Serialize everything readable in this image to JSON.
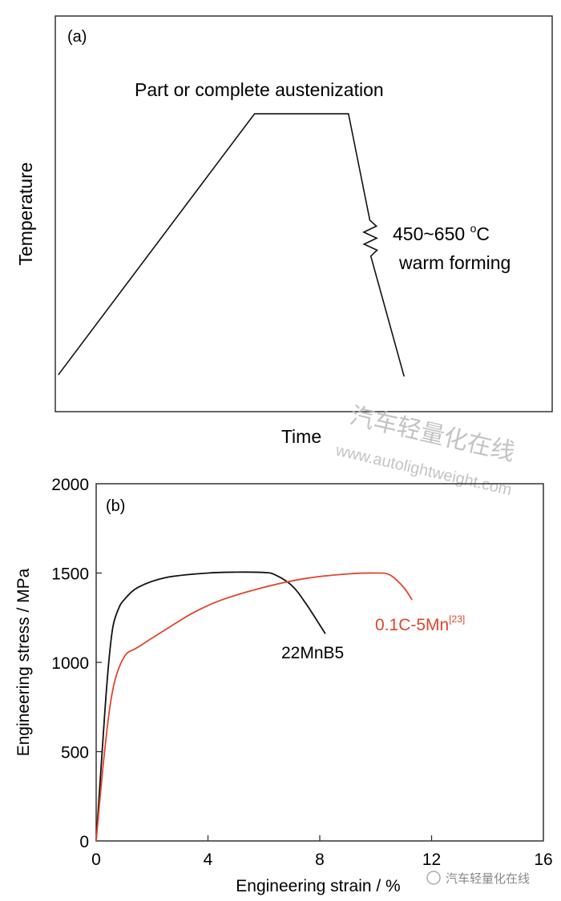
{
  "colors": {
    "axis": "#333333",
    "black_series": "#111111",
    "red_series": "#e0452c",
    "watermark": "#b9b9b9"
  },
  "chart_data": [
    {
      "type": "line",
      "panel_label": "(a)",
      "title": "",
      "xlabel": "Time",
      "ylabel": "Temperature",
      "xlim": [
        0,
        100
      ],
      "ylim": [
        0,
        100
      ],
      "grid": false,
      "note": "schematic, axes without ticks (arbitrary units)",
      "series": [
        {
          "name": "process",
          "x": [
            0.6,
            40.1,
            59,
            63.3,
            63.5,
            70.2
          ],
          "y": [
            9.3,
            75.3,
            75.3,
            48.4,
            39.3,
            8.9
          ]
        }
      ],
      "annotations": {
        "plateau": "Part or complete austenization",
        "temp_range": "450~650 ",
        "degree": "o",
        "unit": "C",
        "forming": "warm forming"
      }
    },
    {
      "type": "line",
      "panel_label": "(b)",
      "title": "",
      "xlabel": "Engineering strain / %",
      "ylabel": "Engineering stress / MPa",
      "xlim": [
        0,
        16
      ],
      "ylim": [
        0,
        2000
      ],
      "xticks": [
        "0",
        "4",
        "8",
        "12",
        "16"
      ],
      "yticks": [
        "0",
        "500",
        "1000",
        "1500",
        "2000"
      ],
      "grid": false,
      "series": [
        {
          "name": "22MnB5",
          "label": "22MnB5",
          "color": "#111111",
          "x": [
            0,
            0.3,
            0.45,
            0.6,
            0.8,
            1.0,
            1.5,
            2.5,
            4.0,
            5.0,
            6.0,
            6.4,
            7.0,
            7.5,
            8.2
          ],
          "y": [
            0,
            700,
            1000,
            1200,
            1300,
            1350,
            1420,
            1475,
            1500,
            1505,
            1503,
            1490,
            1430,
            1330,
            1160
          ]
        },
        {
          "name": "0.1C-5Mn",
          "label": "0.1C-5Mn",
          "ref": "[23]",
          "color": "#e0452c",
          "x": [
            0,
            0.3,
            0.6,
            1.0,
            1.5,
            2.5,
            3.5,
            4.5,
            6.0,
            7.5,
            9.0,
            10.0,
            10.5,
            11.0,
            11.3
          ],
          "y": [
            0,
            500,
            850,
            1030,
            1085,
            1185,
            1280,
            1350,
            1420,
            1470,
            1495,
            1500,
            1490,
            1420,
            1350
          ]
        }
      ]
    }
  ],
  "watermark": {
    "cn": "汽车轻量化在线",
    "url": "www.autolightweight.com",
    "logo_text": "汽车轻量化在线"
  }
}
